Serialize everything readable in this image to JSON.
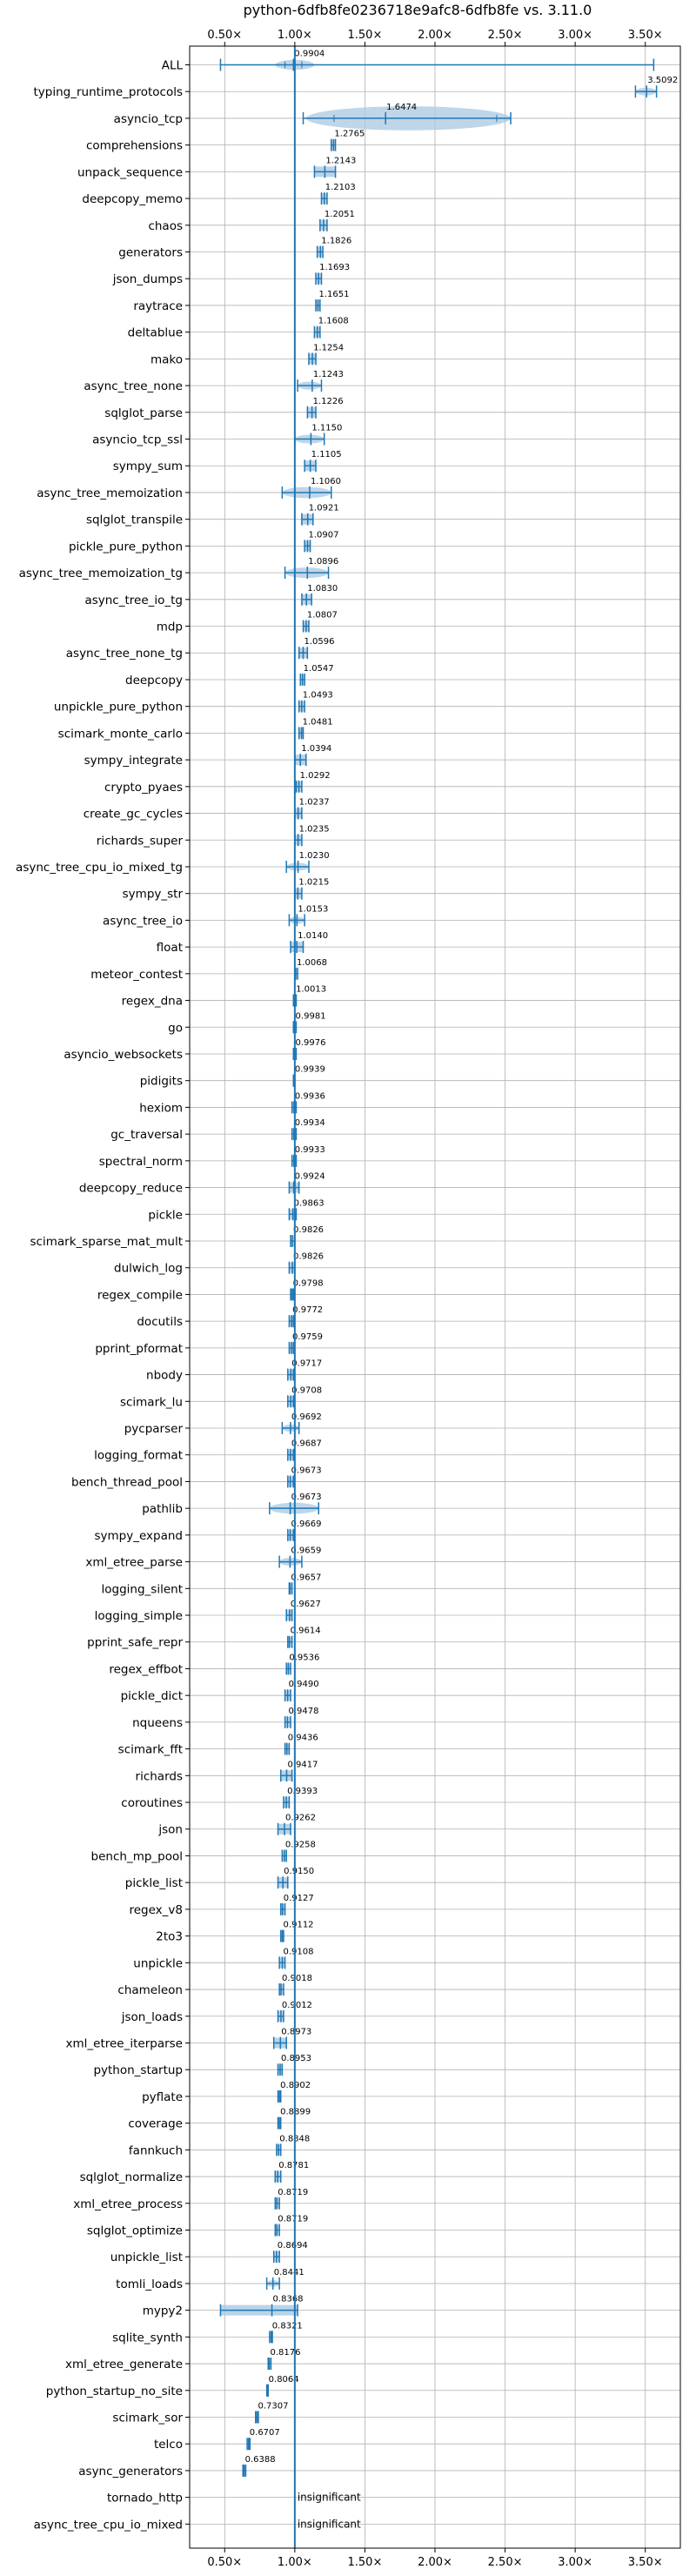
{
  "title": "python-6dfb8fe0236718e9afc8-6dfb8fe vs. 3.11.0",
  "colors": {
    "grid": "#b0b0b0",
    "marker": "#1f77b4",
    "violin": "#a9c8e2",
    "baseline": "#1f77b4",
    "text": "#000000"
  },
  "chart_data": {
    "type": "violin",
    "orientation": "horizontal",
    "title": "python-6dfb8fe0236718e9afc8-6dfb8fe vs. 3.11.0",
    "xlim": [
      0.25,
      3.75
    ],
    "xticks": [
      0.5,
      1.0,
      1.5,
      2.0,
      2.5,
      3.0,
      3.5
    ],
    "xtick_labels": [
      "0.50×",
      "1.00×",
      "1.50×",
      "2.00×",
      "2.50×",
      "3.00×",
      "3.50×"
    ],
    "baseline": 1.0,
    "grid": true,
    "benchmarks": [
      {
        "name": "ALL",
        "value": 0.9904,
        "label": "0.9904",
        "min": 0.47,
        "max": 3.56,
        "violin": [
          0.86,
          1.14
        ],
        "quartiles": [
          0.93,
          1.05
        ]
      },
      {
        "name": "typing_runtime_protocols",
        "value": 3.5092,
        "label": "3.5092",
        "min": 3.43,
        "max": 3.58,
        "violin": [
          3.43,
          3.58
        ],
        "quartiles": []
      },
      {
        "name": "asyncio_tcp",
        "value": 1.6474,
        "label": "1.6474",
        "min": 1.06,
        "max": 2.54,
        "violin": [
          1.08,
          2.54
        ],
        "quartiles": [
          1.28,
          2.44
        ]
      },
      {
        "name": "comprehensions",
        "value": 1.2765,
        "label": "1.2765",
        "min": 1.26,
        "max": 1.29
      },
      {
        "name": "unpack_sequence",
        "value": 1.2143,
        "label": "1.2143",
        "min": 1.14,
        "max": 1.29
      },
      {
        "name": "deepcopy_memo",
        "value": 1.2103,
        "label": "1.2103",
        "min": 1.19,
        "max": 1.23
      },
      {
        "name": "chaos",
        "value": 1.2051,
        "label": "1.2051",
        "min": 1.18,
        "max": 1.23
      },
      {
        "name": "generators",
        "value": 1.1826,
        "label": "1.1826",
        "min": 1.16,
        "max": 1.2
      },
      {
        "name": "json_dumps",
        "value": 1.1693,
        "label": "1.1693",
        "min": 1.15,
        "max": 1.19
      },
      {
        "name": "raytrace",
        "value": 1.1651,
        "label": "1.1651",
        "min": 1.15,
        "max": 1.18
      },
      {
        "name": "deltablue",
        "value": 1.1608,
        "label": "1.1608",
        "min": 1.14,
        "max": 1.18
      },
      {
        "name": "mako",
        "value": 1.1254,
        "label": "1.1254",
        "min": 1.1,
        "max": 1.15
      },
      {
        "name": "async_tree_none",
        "value": 1.1243,
        "label": "1.1243",
        "min": 1.02,
        "max": 1.19,
        "violin": [
          1.02,
          1.19
        ]
      },
      {
        "name": "sqlglot_parse",
        "value": 1.1226,
        "label": "1.1226",
        "min": 1.09,
        "max": 1.15
      },
      {
        "name": "asyncio_tcp_ssl",
        "value": 1.115,
        "label": "1.1150",
        "min": 1.0,
        "max": 1.21,
        "violin": [
          1.0,
          1.21
        ]
      },
      {
        "name": "sympy_sum",
        "value": 1.1105,
        "label": "1.1105",
        "min": 1.07,
        "max": 1.15
      },
      {
        "name": "async_tree_memoization",
        "value": 1.106,
        "label": "1.1060",
        "min": 0.91,
        "max": 1.26,
        "violin": [
          0.91,
          1.26
        ]
      },
      {
        "name": "sqlglot_transpile",
        "value": 1.0921,
        "label": "1.0921",
        "min": 1.05,
        "max": 1.13
      },
      {
        "name": "pickle_pure_python",
        "value": 1.0907,
        "label": "1.0907",
        "min": 1.07,
        "max": 1.11
      },
      {
        "name": "async_tree_memoization_tg",
        "value": 1.0896,
        "label": "1.0896",
        "min": 0.93,
        "max": 1.24,
        "violin": [
          0.93,
          1.24
        ]
      },
      {
        "name": "async_tree_io_tg",
        "value": 1.083,
        "label": "1.0830",
        "min": 1.05,
        "max": 1.12
      },
      {
        "name": "mdp",
        "value": 1.0807,
        "label": "1.0807",
        "min": 1.06,
        "max": 1.1
      },
      {
        "name": "async_tree_none_tg",
        "value": 1.0596,
        "label": "1.0596",
        "min": 1.03,
        "max": 1.09
      },
      {
        "name": "deepcopy",
        "value": 1.0547,
        "label": "1.0547",
        "min": 1.04,
        "max": 1.07
      },
      {
        "name": "unpickle_pure_python",
        "value": 1.0493,
        "label": "1.0493",
        "min": 1.03,
        "max": 1.07
      },
      {
        "name": "scimark_monte_carlo",
        "value": 1.0481,
        "label": "1.0481",
        "min": 1.03,
        "max": 1.06
      },
      {
        "name": "sympy_integrate",
        "value": 1.0394,
        "label": "1.0394",
        "min": 1.0,
        "max": 1.08
      },
      {
        "name": "crypto_pyaes",
        "value": 1.0292,
        "label": "1.0292",
        "min": 1.01,
        "max": 1.05
      },
      {
        "name": "create_gc_cycles",
        "value": 1.0237,
        "label": "1.0237",
        "min": 1.0,
        "max": 1.05
      },
      {
        "name": "richards_super",
        "value": 1.0235,
        "label": "1.0235",
        "min": 1.0,
        "max": 1.05
      },
      {
        "name": "async_tree_cpu_io_mixed_tg",
        "value": 1.023,
        "label": "1.0230",
        "min": 0.94,
        "max": 1.1,
        "violin": [
          0.94,
          1.1
        ]
      },
      {
        "name": "sympy_str",
        "value": 1.0215,
        "label": "1.0215",
        "min": 1.0,
        "max": 1.05
      },
      {
        "name": "async_tree_io",
        "value": 1.0153,
        "label": "1.0153",
        "min": 0.96,
        "max": 1.07,
        "violin": [
          0.96,
          1.07
        ]
      },
      {
        "name": "float",
        "value": 1.014,
        "label": "1.0140",
        "min": 0.97,
        "max": 1.06
      },
      {
        "name": "meteor_contest",
        "value": 1.0068,
        "label": "1.0068",
        "min": 1.0,
        "max": 1.02
      },
      {
        "name": "regex_dna",
        "value": 1.0013,
        "label": "1.0013",
        "min": 0.99,
        "max": 1.01
      },
      {
        "name": "go",
        "value": 0.9981,
        "label": "0.9981",
        "min": 0.99,
        "max": 1.01
      },
      {
        "name": "asyncio_websockets",
        "value": 0.9976,
        "label": "0.9976",
        "min": 0.99,
        "max": 1.01
      },
      {
        "name": "pidigits",
        "value": 0.9939,
        "label": "0.9939",
        "min": 0.99,
        "max": 1.0
      },
      {
        "name": "hexiom",
        "value": 0.9936,
        "label": "0.9936",
        "min": 0.98,
        "max": 1.01
      },
      {
        "name": "gc_traversal",
        "value": 0.9934,
        "label": "0.9934",
        "min": 0.98,
        "max": 1.01
      },
      {
        "name": "spectral_norm",
        "value": 0.9933,
        "label": "0.9933",
        "min": 0.98,
        "max": 1.01
      },
      {
        "name": "deepcopy_reduce",
        "value": 0.9924,
        "label": "0.9924",
        "min": 0.96,
        "max": 1.03
      },
      {
        "name": "pickle",
        "value": 0.9863,
        "label": "0.9863",
        "min": 0.96,
        "max": 1.01
      },
      {
        "name": "scimark_sparse_mat_mult",
        "value": 0.9826,
        "label": "0.9826",
        "min": 0.97,
        "max": 1.0
      },
      {
        "name": "dulwich_log",
        "value": 0.9826,
        "label": "0.9826",
        "min": 0.96,
        "max": 1.0
      },
      {
        "name": "regex_compile",
        "value": 0.9798,
        "label": "0.9798",
        "min": 0.97,
        "max": 0.99
      },
      {
        "name": "docutils",
        "value": 0.9772,
        "label": "0.9772",
        "min": 0.96,
        "max": 0.99
      },
      {
        "name": "pprint_pformat",
        "value": 0.9759,
        "label": "0.9759",
        "min": 0.96,
        "max": 0.99
      },
      {
        "name": "nbody",
        "value": 0.9717,
        "label": "0.9717",
        "min": 0.95,
        "max": 0.99
      },
      {
        "name": "scimark_lu",
        "value": 0.9708,
        "label": "0.9708",
        "min": 0.95,
        "max": 0.99
      },
      {
        "name": "pycparser",
        "value": 0.9692,
        "label": "0.9692",
        "min": 0.91,
        "max": 1.03,
        "violin": [
          0.91,
          1.03
        ]
      },
      {
        "name": "logging_format",
        "value": 0.9687,
        "label": "0.9687",
        "min": 0.95,
        "max": 0.99
      },
      {
        "name": "bench_thread_pool",
        "value": 0.9673,
        "label": "0.9673",
        "min": 0.95,
        "max": 0.99
      },
      {
        "name": "pathlib",
        "value": 0.9673,
        "label": "0.9673",
        "min": 0.82,
        "max": 1.17,
        "violin": [
          0.82,
          1.17
        ]
      },
      {
        "name": "sympy_expand",
        "value": 0.9669,
        "label": "0.9669",
        "min": 0.95,
        "max": 0.99
      },
      {
        "name": "xml_etree_parse",
        "value": 0.9659,
        "label": "0.9659",
        "min": 0.89,
        "max": 1.05,
        "violin": [
          0.89,
          1.05
        ]
      },
      {
        "name": "logging_silent",
        "value": 0.9657,
        "label": "0.9657",
        "min": 0.96,
        "max": 0.98
      },
      {
        "name": "logging_simple",
        "value": 0.9627,
        "label": "0.9627",
        "min": 0.94,
        "max": 0.98
      },
      {
        "name": "pprint_safe_repr",
        "value": 0.9614,
        "label": "0.9614",
        "min": 0.95,
        "max": 0.98
      },
      {
        "name": "regex_effbot",
        "value": 0.9536,
        "label": "0.9536",
        "min": 0.94,
        "max": 0.97
      },
      {
        "name": "pickle_dict",
        "value": 0.949,
        "label": "0.9490",
        "min": 0.93,
        "max": 0.97
      },
      {
        "name": "nqueens",
        "value": 0.9478,
        "label": "0.9478",
        "min": 0.93,
        "max": 0.97
      },
      {
        "name": "scimark_fft",
        "value": 0.9436,
        "label": "0.9436",
        "min": 0.93,
        "max": 0.96
      },
      {
        "name": "richards",
        "value": 0.9417,
        "label": "0.9417",
        "min": 0.9,
        "max": 0.98
      },
      {
        "name": "coroutines",
        "value": 0.9393,
        "label": "0.9393",
        "min": 0.92,
        "max": 0.96
      },
      {
        "name": "json",
        "value": 0.9262,
        "label": "0.9262",
        "min": 0.88,
        "max": 0.97
      },
      {
        "name": "bench_mp_pool",
        "value": 0.9258,
        "label": "0.9258",
        "min": 0.91,
        "max": 0.94
      },
      {
        "name": "pickle_list",
        "value": 0.915,
        "label": "0.9150",
        "min": 0.88,
        "max": 0.95
      },
      {
        "name": "regex_v8",
        "value": 0.9127,
        "label": "0.9127",
        "min": 0.9,
        "max": 0.93
      },
      {
        "name": "2to3",
        "value": 0.9112,
        "label": "0.9112",
        "min": 0.9,
        "max": 0.92
      },
      {
        "name": "unpickle",
        "value": 0.9108,
        "label": "0.9108",
        "min": 0.89,
        "max": 0.93
      },
      {
        "name": "chameleon",
        "value": 0.9018,
        "label": "0.9018",
        "min": 0.89,
        "max": 0.92
      },
      {
        "name": "json_loads",
        "value": 0.9012,
        "label": "0.9012",
        "min": 0.88,
        "max": 0.92
      },
      {
        "name": "xml_etree_iterparse",
        "value": 0.8973,
        "label": "0.8973",
        "min": 0.85,
        "max": 0.94
      },
      {
        "name": "python_startup",
        "value": 0.8953,
        "label": "0.8953",
        "min": 0.88,
        "max": 0.91
      },
      {
        "name": "pyflate",
        "value": 0.8902,
        "label": "0.8902",
        "min": 0.88,
        "max": 0.9
      },
      {
        "name": "coverage",
        "value": 0.8899,
        "label": "0.8899",
        "min": 0.88,
        "max": 0.9
      },
      {
        "name": "fannkuch",
        "value": 0.8848,
        "label": "0.8848",
        "min": 0.87,
        "max": 0.9
      },
      {
        "name": "sqlglot_normalize",
        "value": 0.8781,
        "label": "0.8781",
        "min": 0.86,
        "max": 0.9
      },
      {
        "name": "xml_etree_process",
        "value": 0.8719,
        "label": "0.8719",
        "min": 0.86,
        "max": 0.89
      },
      {
        "name": "sqlglot_optimize",
        "value": 0.8719,
        "label": "0.8719",
        "min": 0.86,
        "max": 0.89
      },
      {
        "name": "unpickle_list",
        "value": 0.8694,
        "label": "0.8694",
        "min": 0.85,
        "max": 0.89
      },
      {
        "name": "tomli_loads",
        "value": 0.8441,
        "label": "0.8441",
        "min": 0.8,
        "max": 0.89,
        "violin": [
          0.8,
          0.89
        ]
      },
      {
        "name": "mypy2",
        "value": 0.8368,
        "label": "0.8368",
        "min": 0.47,
        "max": 1.02
      },
      {
        "name": "sqlite_synth",
        "value": 0.8321,
        "label": "0.8321",
        "min": 0.82,
        "max": 0.84
      },
      {
        "name": "xml_etree_generate",
        "value": 0.8176,
        "label": "0.8176",
        "min": 0.81,
        "max": 0.83
      },
      {
        "name": "python_startup_no_site",
        "value": 0.8064,
        "label": "0.8064",
        "min": 0.8,
        "max": 0.81
      },
      {
        "name": "scimark_sor",
        "value": 0.7307,
        "label": "0.7307",
        "min": 0.72,
        "max": 0.74
      },
      {
        "name": "telco",
        "value": 0.6707,
        "label": "0.6707",
        "min": 0.66,
        "max": 0.68
      },
      {
        "name": "async_generators",
        "value": 0.6388,
        "label": "0.6388",
        "min": 0.63,
        "max": 0.65
      },
      {
        "name": "tornado_http",
        "value": null,
        "label": "insignificant"
      },
      {
        "name": "async_tree_cpu_io_mixed",
        "value": null,
        "label": "insignificant"
      }
    ]
  }
}
